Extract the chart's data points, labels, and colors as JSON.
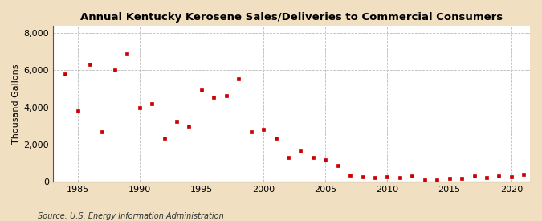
{
  "title": "Annual Kentucky Kerosene Sales/Deliveries to Commercial Consumers",
  "ylabel": "Thousand Gallons",
  "source": "Source: U.S. Energy Information Administration",
  "figure_bg": "#f0dfc0",
  "plot_bg": "#ffffff",
  "marker_color": "#cc0000",
  "marker": "s",
  "marker_size": 3.5,
  "xlim": [
    1983,
    2021.5
  ],
  "ylim": [
    0,
    8400
  ],
  "yticks": [
    0,
    2000,
    4000,
    6000,
    8000
  ],
  "xticks": [
    1985,
    1990,
    1995,
    2000,
    2005,
    2010,
    2015,
    2020
  ],
  "years": [
    1984,
    1985,
    1986,
    1987,
    1988,
    1989,
    1990,
    1991,
    1992,
    1993,
    1994,
    1995,
    1996,
    1997,
    1998,
    1999,
    2000,
    2001,
    2002,
    2003,
    2004,
    2005,
    2006,
    2007,
    2008,
    2009,
    2010,
    2011,
    2012,
    2013,
    2014,
    2015,
    2016,
    2017,
    2018,
    2019,
    2020,
    2021
  ],
  "values": [
    5800,
    3800,
    6300,
    2700,
    6000,
    6900,
    4000,
    4200,
    2350,
    3250,
    3000,
    4950,
    4550,
    4650,
    5550,
    2700,
    2800,
    2350,
    1300,
    1650,
    1300,
    1150,
    850,
    350,
    270,
    230,
    250,
    200,
    280,
    90,
    70,
    185,
    160,
    290,
    215,
    290,
    260,
    380
  ]
}
